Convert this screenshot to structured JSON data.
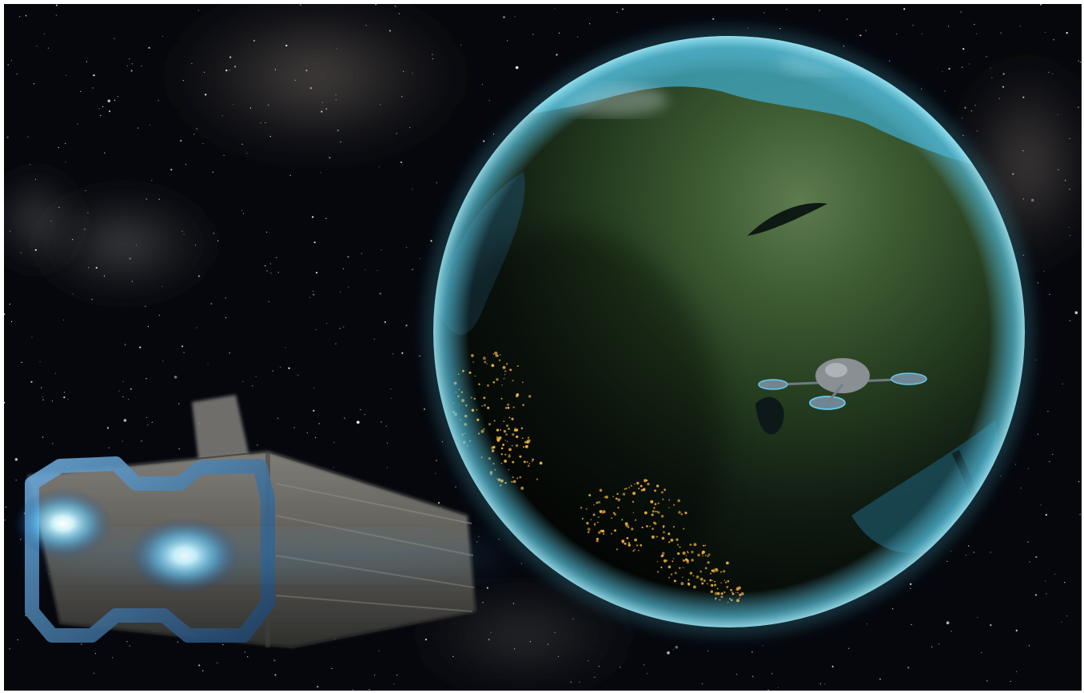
{
  "scene": {
    "subject": "space-scene",
    "colors": {
      "space": "#05070d",
      "nebula": "#8b7f73",
      "planet_ocean": "#3fa2b7",
      "planet_land": "#2e4c24",
      "city_lights": "#f2b33b",
      "engine_glow": "#8fe9ff",
      "ship_hull": "#6f6c66",
      "ship_trim": "#4d89b8"
    }
  }
}
